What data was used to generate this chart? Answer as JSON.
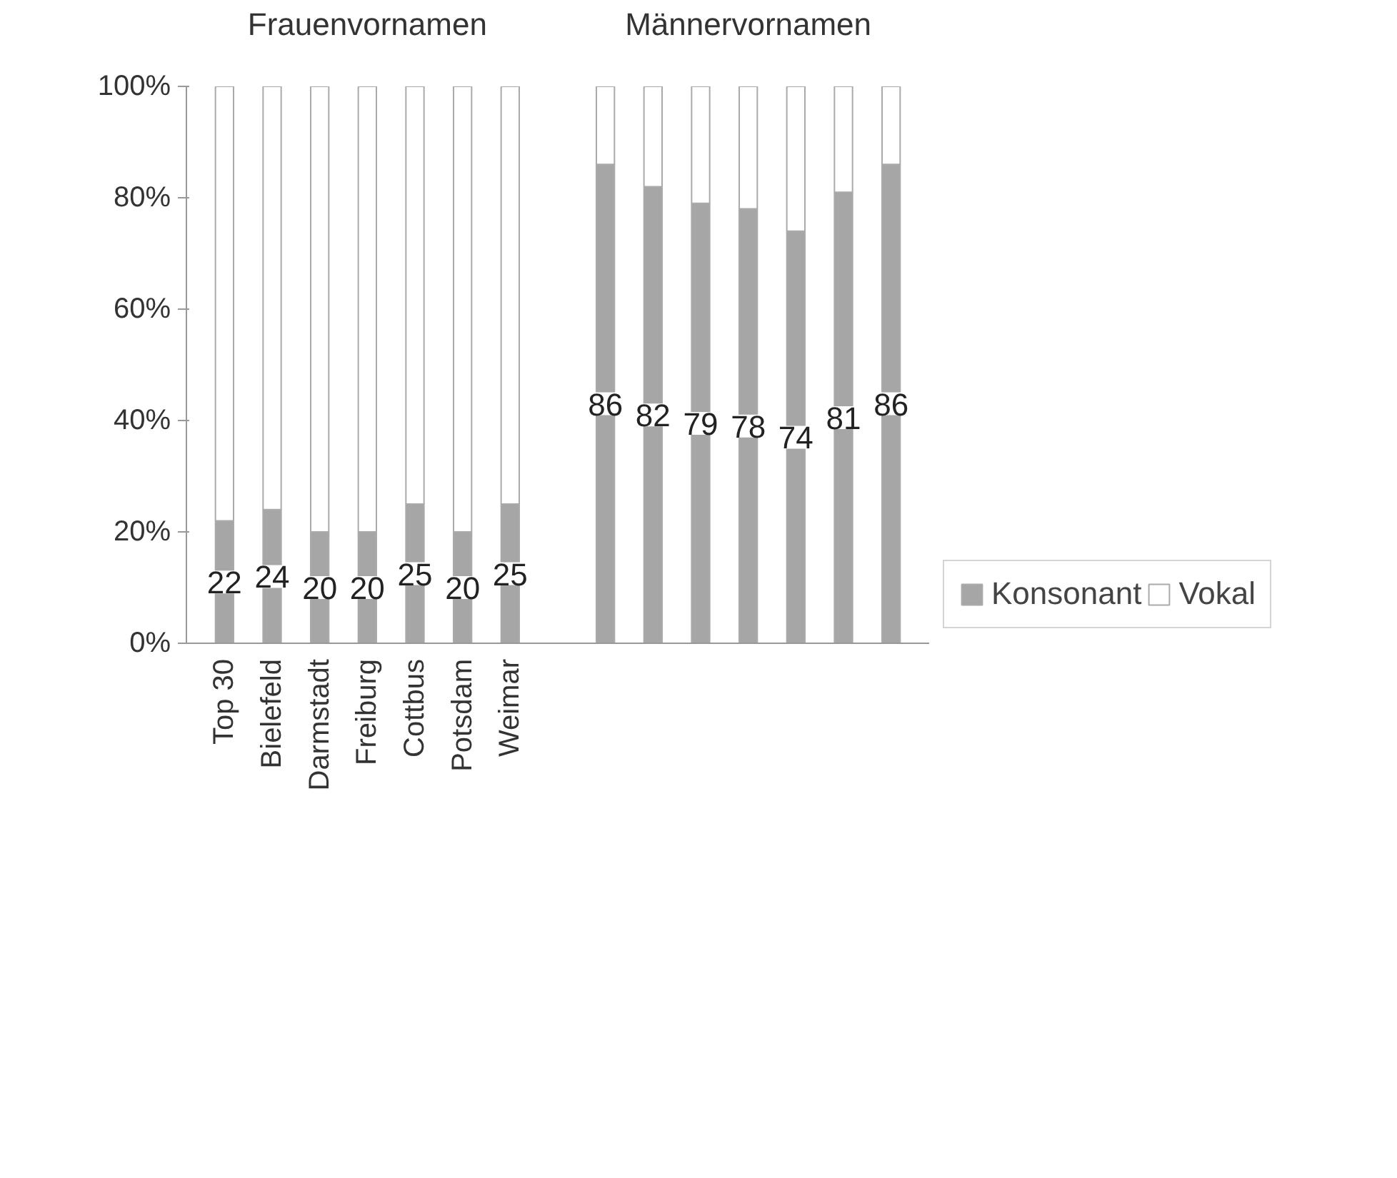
{
  "chart_data": {
    "type": "bar",
    "stacked": true,
    "categories": [
      "Top 30",
      "Bielefeld",
      "Darmstadt",
      "Freiburg",
      "Cottbus",
      "Potsdam",
      "Weimar",
      null,
      null,
      null,
      null,
      null,
      null,
      null,
      null
    ],
    "series": [
      {
        "name": "Konsonant",
        "color": "#a6a6a6",
        "values": [
          22,
          24,
          20,
          20,
          25,
          20,
          25,
          null,
          86,
          82,
          79,
          78,
          74,
          81,
          86
        ],
        "value_labels": [
          "22",
          "24",
          "20",
          "20",
          "25",
          "20",
          "25",
          null,
          "86",
          "82",
          "79",
          "78",
          "74",
          "81",
          "86"
        ]
      },
      {
        "name": "Vokal",
        "color": "#ffffff",
        "values": [
          78,
          76,
          80,
          80,
          75,
          80,
          75,
          null,
          14,
          18,
          21,
          22,
          26,
          19,
          14
        ]
      }
    ],
    "annotations": [
      "Frauenvornamen",
      "Männervornamen"
    ],
    "ylim": [
      0,
      100
    ],
    "yticks": [
      {
        "value": 0,
        "label": "0%"
      },
      {
        "value": 20,
        "label": "20%"
      },
      {
        "value": 40,
        "label": "40%"
      },
      {
        "value": 60,
        "label": "60%"
      },
      {
        "value": 80,
        "label": "80%"
      },
      {
        "value": 100,
        "label": "100%"
      }
    ],
    "grid": false,
    "legend": "bottom right"
  }
}
